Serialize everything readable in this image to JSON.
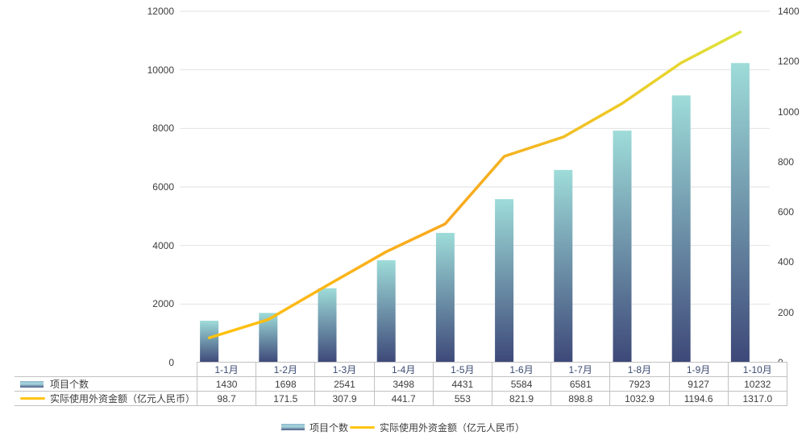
{
  "chart_data": {
    "type": "combo-bar-line",
    "title": "",
    "categories": [
      "1-1月",
      "1-2月",
      "1-3月",
      "1-4月",
      "1-5月",
      "1-6月",
      "1-7月",
      "1-8月",
      "1-9月",
      "1-10月"
    ],
    "series": [
      {
        "name": "项目个数",
        "type": "bar",
        "axis": "left",
        "values": [
          1430,
          1698,
          2541,
          3498,
          4431,
          5584,
          6581,
          7923,
          9127,
          10232
        ],
        "labels": [
          "1430",
          "1698",
          "2541",
          "3498",
          "4431",
          "5584",
          "6581",
          "7923",
          "9127",
          "10232"
        ]
      },
      {
        "name": "实际使用外资金额（亿元人民币）",
        "type": "line",
        "axis": "right",
        "values": [
          98.7,
          171.5,
          307.9,
          441.7,
          553,
          821.9,
          898.8,
          1032.9,
          1194.6,
          1317.0
        ],
        "labels": [
          "98.7",
          "171.5",
          "307.9",
          "441.7",
          "553",
          "821.9",
          "898.8",
          "1032.9",
          "1194.6",
          "1317.0"
        ]
      }
    ],
    "left_axis": {
      "min": 0,
      "max": 12000,
      "step": 2000,
      "tick_values": [
        0,
        2000,
        4000,
        6000,
        8000,
        10000,
        12000
      ]
    },
    "right_axis": {
      "min": 0,
      "max": 1400,
      "step": 200,
      "tick_values": [
        0,
        200,
        400,
        600,
        800,
        1000,
        1200,
        1400
      ]
    },
    "grid": true,
    "legend_position": "bottom",
    "data_table_shown": true
  },
  "colors": {
    "bar_top": "#9edcd9",
    "bar_bottom": "#3d4878",
    "line_start": "#ffc30f",
    "line_mid": "#f8a81e",
    "line_late": "#eeca26",
    "line_end": "#dde43c",
    "grid": "#e2e2e2",
    "table_border": "#c1c1c1",
    "text": "#3d3d3d",
    "category_text": "#3b4a71"
  }
}
